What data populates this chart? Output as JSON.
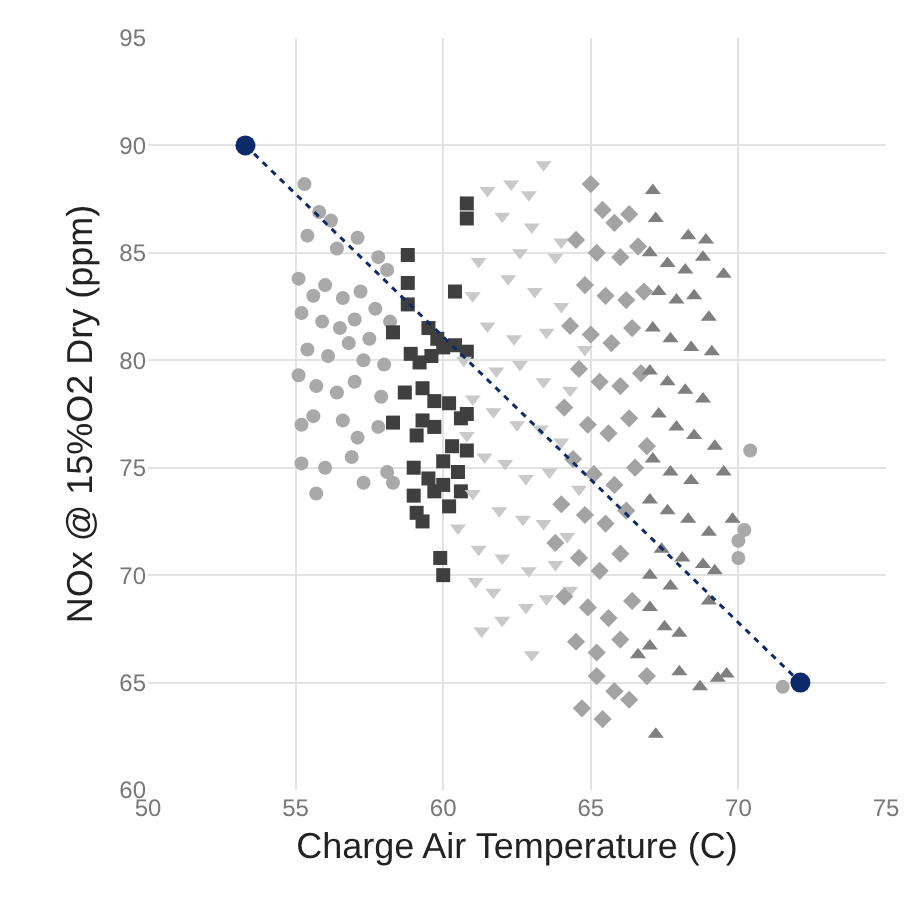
{
  "chart_data": {
    "type": "scatter",
    "xlabel": "Charge Air Temperature (C)",
    "ylabel": "NOx @ 15%O2 Dry (ppm)",
    "xlim": [
      50,
      75
    ],
    "xticks": [
      50,
      55,
      60,
      65,
      70,
      75
    ],
    "ylim": [
      60,
      95
    ],
    "yticks": [
      60,
      65,
      70,
      75,
      80,
      85,
      90,
      95
    ],
    "grid": true,
    "series": [
      {
        "color": "#a9a9a9",
        "marker": "circle",
        "x": [
          55.3,
          55.8,
          56.2,
          55.4,
          56.4,
          57.1,
          57.8,
          58.1,
          55.1,
          55.6,
          56.0,
          56.6,
          57.2,
          57.7,
          55.2,
          55.9,
          56.5,
          57.0,
          57.5,
          58.2,
          55.4,
          56.1,
          56.8,
          57.3,
          58.0,
          55.1,
          55.7,
          56.4,
          57.0,
          57.9,
          55.2,
          55.6,
          56.6,
          57.1,
          57.8,
          55.2,
          56.0,
          56.9,
          57.3,
          58.1,
          55.7,
          58.3,
          70.4,
          70.2,
          70.0,
          70.0,
          71.5
        ],
        "values": [
          88.2,
          86.9,
          86.5,
          85.8,
          85.2,
          85.7,
          84.8,
          84.2,
          83.8,
          83.0,
          83.5,
          82.9,
          83.2,
          82.4,
          82.2,
          81.8,
          81.5,
          81.9,
          81.0,
          81.8,
          80.5,
          80.2,
          80.8,
          80.0,
          79.8,
          79.3,
          78.8,
          78.5,
          79.0,
          78.3,
          77.0,
          77.4,
          77.2,
          76.4,
          76.9,
          75.2,
          75.0,
          75.5,
          74.3,
          74.8,
          73.8,
          74.3,
          75.8,
          72.1,
          71.6,
          70.8,
          64.8
        ]
      },
      {
        "color": "#3f3f3f",
        "marker": "square",
        "x": [
          60.8,
          60.8,
          58.8,
          58.8,
          60.4,
          58.8,
          59.5,
          59.8,
          60.0,
          60.4,
          60.8,
          58.3,
          58.9,
          59.2,
          59.6,
          58.7,
          59.3,
          59.7,
          60.6,
          58.3,
          59.1,
          59.7,
          60.3,
          60.8,
          59.0,
          59.5,
          60.0,
          60.5,
          60.8,
          59.0,
          59.7,
          60.2,
          60.6,
          59.1,
          59.3,
          60.0,
          59.9,
          60.0,
          59.3,
          60.2
        ],
        "values": [
          87.3,
          86.6,
          84.9,
          83.6,
          83.2,
          82.6,
          81.5,
          81.0,
          80.6,
          80.7,
          80.4,
          81.3,
          80.3,
          79.9,
          80.2,
          78.5,
          78.7,
          78.1,
          77.3,
          77.1,
          76.5,
          76.9,
          76.0,
          77.5,
          75.0,
          74.5,
          75.3,
          74.8,
          75.8,
          73.7,
          73.9,
          73.2,
          73.9,
          72.9,
          72.5,
          74.2,
          70.8,
          70.0,
          77.2,
          78.0
        ]
      },
      {
        "color": "#c9c9c9",
        "marker": "triangle-down",
        "x": [
          63.4,
          62.3,
          62.9,
          61.5,
          62.0,
          63.0,
          62.6,
          61.2,
          63.8,
          62.2,
          61.0,
          63.1,
          64.0,
          61.5,
          62.4,
          63.5,
          60.7,
          61.8,
          62.6,
          63.4,
          64.3,
          61.0,
          61.7,
          62.5,
          63.3,
          64.0,
          60.8,
          61.4,
          62.1,
          62.8,
          63.6,
          64.6,
          61.0,
          61.9,
          62.7,
          63.4,
          64.2,
          60.5,
          61.2,
          62.0,
          62.9,
          63.8,
          61.1,
          61.7,
          62.8,
          63.5,
          64.3,
          62.0,
          61.3,
          63.0,
          64.0,
          64.8
        ],
        "values": [
          89.1,
          88.2,
          87.7,
          87.9,
          86.7,
          86.2,
          85.0,
          84.6,
          84.8,
          83.8,
          83.0,
          83.2,
          82.5,
          81.6,
          81.0,
          81.3,
          80.0,
          79.5,
          79.8,
          79.0,
          78.6,
          78.2,
          77.6,
          77.0,
          76.8,
          76.2,
          76.5,
          75.5,
          75.2,
          74.5,
          74.8,
          74.0,
          73.8,
          73.0,
          72.6,
          72.4,
          71.8,
          72.2,
          71.2,
          70.8,
          70.2,
          70.5,
          69.7,
          69.2,
          68.5,
          68.9,
          69.3,
          67.9,
          67.4,
          66.3,
          85.5,
          80.5
        ]
      },
      {
        "color": "#a3a3a3",
        "marker": "diamond",
        "x": [
          65.0,
          65.4,
          65.8,
          66.3,
          64.5,
          65.2,
          66.0,
          66.6,
          64.8,
          65.5,
          66.2,
          66.8,
          64.3,
          65.0,
          65.7,
          66.4,
          64.6,
          65.3,
          66.0,
          66.7,
          64.1,
          64.9,
          65.6,
          66.3,
          66.9,
          64.4,
          65.1,
          65.8,
          66.5,
          64.0,
          64.8,
          65.5,
          66.2,
          63.8,
          64.6,
          65.3,
          66.0,
          64.1,
          64.9,
          65.6,
          66.4,
          64.5,
          65.2,
          66.0,
          65.2,
          65.8,
          64.7,
          65.4,
          66.3,
          66.9
        ],
        "values": [
          88.2,
          87.0,
          86.4,
          86.8,
          85.6,
          85.0,
          84.8,
          85.3,
          83.5,
          83.0,
          82.8,
          83.2,
          81.6,
          81.2,
          80.8,
          81.5,
          79.6,
          79.0,
          78.8,
          79.4,
          77.8,
          77.0,
          76.6,
          77.3,
          76.0,
          75.4,
          74.7,
          74.2,
          75.0,
          73.3,
          72.8,
          72.4,
          73.0,
          71.5,
          70.8,
          70.2,
          71.0,
          69.0,
          68.5,
          68.0,
          68.8,
          66.9,
          66.4,
          67.0,
          65.3,
          64.6,
          63.8,
          63.3,
          64.2,
          65.3
        ]
      },
      {
        "color": "#7f7f7f",
        "marker": "triangle",
        "x": [
          67.1,
          67.2,
          68.3,
          68.9,
          67.0,
          67.6,
          68.2,
          68.8,
          69.5,
          67.3,
          67.9,
          68.5,
          69.0,
          67.1,
          67.7,
          68.4,
          69.1,
          67.0,
          67.6,
          68.2,
          68.8,
          67.3,
          67.9,
          68.5,
          69.2,
          67.1,
          67.7,
          68.4,
          69.5,
          67.0,
          67.6,
          68.3,
          69.0,
          69.8,
          67.4,
          68.1,
          68.8,
          67.0,
          67.7,
          69.2,
          67.0,
          67.5,
          68.0,
          69.0,
          66.6,
          67.0,
          68.0,
          68.7,
          69.3,
          69.6,
          67.2
        ],
        "values": [
          87.9,
          86.6,
          85.8,
          85.6,
          85.0,
          84.5,
          84.2,
          84.8,
          84.0,
          83.2,
          82.8,
          83.0,
          82.0,
          81.5,
          81.0,
          80.6,
          80.4,
          79.5,
          79.0,
          78.6,
          78.2,
          77.5,
          76.9,
          76.5,
          76.0,
          75.4,
          74.8,
          74.4,
          74.8,
          73.5,
          73.0,
          72.6,
          72.0,
          72.6,
          71.2,
          70.8,
          70.5,
          70.0,
          69.5,
          70.2,
          68.5,
          67.6,
          67.3,
          68.8,
          66.3,
          66.7,
          65.5,
          64.8,
          65.2,
          65.4,
          62.6
        ]
      },
      {
        "type": "line",
        "color": "#0d2a6b",
        "marker": "circle",
        "line_style": "dotted",
        "x": [
          53.3,
          72.1
        ],
        "values": [
          90,
          65
        ]
      }
    ]
  }
}
